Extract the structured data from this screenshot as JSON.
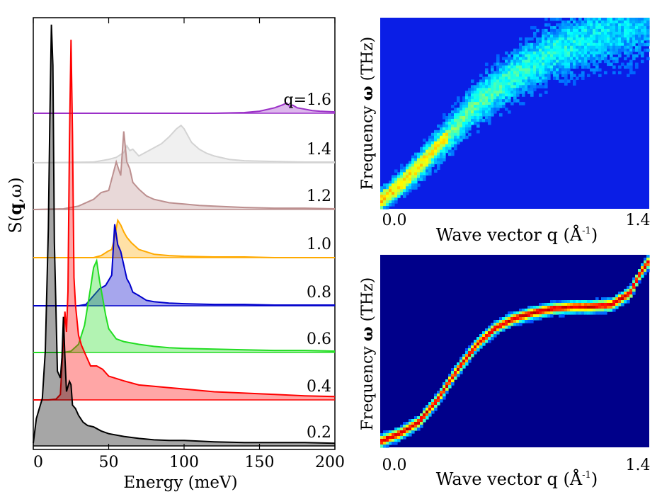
{
  "chart_data": [
    {
      "type": "line",
      "title": "",
      "ylabel": "S(q,ω)",
      "ylabel_main": "S(",
      "ylabel_q": "q",
      "ylabel_rest": ",ω)",
      "xlabel": "Energy (meV)",
      "xlim": [
        0,
        200
      ],
      "xticks": [
        "0",
        "50",
        "100",
        "150",
        "200"
      ],
      "curve_label_prefix": "q=",
      "series": [
        {
          "name": "0.2",
          "color": "#000000",
          "x": [
            0,
            2,
            4,
            6,
            8,
            10,
            11,
            12,
            13,
            14,
            16,
            18,
            19,
            20,
            21,
            22,
            24,
            25,
            26,
            28,
            30,
            33,
            36,
            40,
            45,
            50,
            60,
            70,
            80,
            90,
            100,
            120,
            140,
            160,
            180,
            200
          ],
          "values": [
            0.04,
            0.4,
            0.55,
            0.7,
            1.4,
            3.2,
            4.8,
            6.2,
            5.6,
            3.0,
            1.1,
            1.0,
            1.3,
            1.9,
            1.3,
            0.8,
            0.95,
            0.9,
            0.6,
            0.55,
            0.45,
            0.35,
            0.3,
            0.28,
            0.22,
            0.18,
            0.14,
            0.11,
            0.09,
            0.08,
            0.08,
            0.06,
            0.05,
            0.05,
            0.05,
            0.04
          ]
        },
        {
          "name": "0.4",
          "color": "#ff0000",
          "x": [
            0,
            10,
            15,
            18,
            20,
            21,
            22,
            23,
            24,
            25,
            26,
            27,
            28,
            30,
            32,
            35,
            38,
            42,
            46,
            50,
            60,
            70,
            80,
            90,
            100,
            120,
            140,
            160,
            180,
            200
          ],
          "values": [
            0,
            0,
            0.01,
            0.08,
            0.9,
            1.3,
            1.0,
            1.6,
            3.8,
            5.3,
            3.9,
            1.8,
            1.4,
            0.95,
            0.8,
            0.65,
            0.5,
            0.5,
            0.45,
            0.35,
            0.28,
            0.22,
            0.2,
            0.18,
            0.16,
            0.12,
            0.1,
            0.08,
            0.06,
            0.05
          ]
        },
        {
          "name": "0.6",
          "color": "#22dd22",
          "x": [
            0,
            20,
            25,
            30,
            34,
            38,
            40,
            42,
            44,
            46,
            48,
            50,
            55,
            60,
            70,
            80,
            90,
            100,
            120,
            140,
            160,
            180,
            200
          ],
          "values": [
            0,
            0,
            0.02,
            0.12,
            0.4,
            0.95,
            1.25,
            1.35,
            1.05,
            0.8,
            0.55,
            0.35,
            0.2,
            0.16,
            0.12,
            0.09,
            0.07,
            0.06,
            0.05,
            0.04,
            0.03,
            0.03,
            0.02
          ]
        },
        {
          "name": "0.8",
          "color": "#0000cc",
          "x": [
            0,
            30,
            35,
            40,
            44,
            48,
            52,
            54,
            56,
            58,
            60,
            62,
            64,
            66,
            70,
            75,
            80,
            90,
            100,
            120,
            140,
            160,
            180,
            200
          ],
          "values": [
            0,
            0,
            0.02,
            0.15,
            0.25,
            0.3,
            0.45,
            1.2,
            0.9,
            0.8,
            0.6,
            0.4,
            0.32,
            0.2,
            0.15,
            0.08,
            0.06,
            0.04,
            0.03,
            0.02,
            0.02,
            0.01,
            0.01,
            0.01
          ]
        },
        {
          "name": "1.0",
          "color": "#ffaa00",
          "x": [
            0,
            40,
            45,
            50,
            52,
            54,
            56,
            58,
            60,
            62,
            65,
            70,
            80,
            90,
            100,
            120,
            140,
            160,
            180,
            200
          ],
          "values": [
            0,
            0,
            0.03,
            0.1,
            0.12,
            0.3,
            0.55,
            0.48,
            0.38,
            0.3,
            0.22,
            0.12,
            0.05,
            0.03,
            0.02,
            0.01,
            0.01,
            0.0,
            0.0,
            0.0
          ]
        },
        {
          "name": "1.2",
          "color": "#bc8f8f",
          "x": [
            0,
            20,
            30,
            40,
            45,
            50,
            55,
            58,
            60,
            62,
            64,
            66,
            68,
            70,
            75,
            80,
            90,
            100,
            110,
            120,
            140,
            160,
            180,
            200
          ],
          "values": [
            0,
            0.01,
            0.05,
            0.15,
            0.25,
            0.28,
            0.7,
            0.5,
            1.15,
            0.7,
            0.6,
            0.4,
            0.35,
            0.3,
            0.2,
            0.15,
            0.1,
            0.08,
            0.06,
            0.05,
            0.03,
            0.02,
            0.02,
            0.01
          ]
        },
        {
          "name": "1.4",
          "color": "#d3d3d3",
          "x": [
            0,
            40,
            50,
            55,
            60,
            62,
            64,
            66,
            70,
            80,
            85,
            90,
            95,
            98,
            100,
            105,
            110,
            115,
            120,
            130,
            140,
            160,
            180,
            200
          ],
          "values": [
            0,
            0.01,
            0.05,
            0.08,
            0.15,
            0.25,
            0.18,
            0.2,
            0.1,
            0.22,
            0.28,
            0.38,
            0.5,
            0.55,
            0.5,
            0.3,
            0.2,
            0.14,
            0.1,
            0.05,
            0.03,
            0.02,
            0.01,
            0.01
          ]
        },
        {
          "name": "1.6",
          "color": "#9b30c8",
          "x": [
            0,
            120,
            140,
            150,
            160,
            165,
            168,
            170,
            172,
            175,
            180,
            185,
            190,
            200
          ],
          "values": [
            0,
            0,
            0.01,
            0.03,
            0.08,
            0.12,
            0.15,
            0.1,
            0.12,
            0.08,
            0.06,
            0.04,
            0.03,
            0.02
          ]
        }
      ]
    },
    {
      "type": "heatmap",
      "title": "",
      "xlabel": "Wave vector q (Å⁻¹)",
      "xlabel_text": "Wave vector q (Å",
      "xlabel_exp": "-1",
      "xlabel_close": ")",
      "ylabel": "Frequency ω (THz)",
      "ylabel_pre": "Frequency ",
      "ylabel_omega": "ω",
      "ylabel_post": " (THz)",
      "xlim": [
        0.0,
        1.4
      ],
      "xtick_left": "0.0",
      "xtick_right": "1.4",
      "ridge": {
        "q": [
          0.0,
          0.1,
          0.2,
          0.35,
          0.5,
          0.7,
          0.9,
          1.1,
          1.3,
          1.4
        ],
        "omega": [
          0.04,
          0.12,
          0.22,
          0.38,
          0.55,
          0.7,
          0.82,
          0.9,
          0.95,
          1.0
        ]
      }
    },
    {
      "type": "heatmap",
      "title": "",
      "xlabel": "Wave vector q (Å⁻¹)",
      "xlabel_text": "Wave vector q (Å",
      "xlabel_exp": "-1",
      "xlabel_close": ")",
      "ylabel": "Frequency ω (THz)",
      "ylabel_pre": "Frequency ",
      "ylabel_omega": "ω",
      "ylabel_post": " (THz)",
      "xlim": [
        0.0,
        1.4
      ],
      "xtick_left": "0.0",
      "xtick_right": "1.4",
      "ridge": {
        "q": [
          0.0,
          0.1,
          0.2,
          0.3,
          0.4,
          0.5,
          0.6,
          0.7,
          0.8,
          0.9,
          1.0,
          1.1,
          1.2,
          1.3,
          1.35,
          1.4
        ],
        "omega": [
          0.03,
          0.07,
          0.13,
          0.25,
          0.4,
          0.53,
          0.62,
          0.67,
          0.7,
          0.72,
          0.73,
          0.73,
          0.74,
          0.8,
          0.9,
          0.97
        ]
      }
    }
  ]
}
